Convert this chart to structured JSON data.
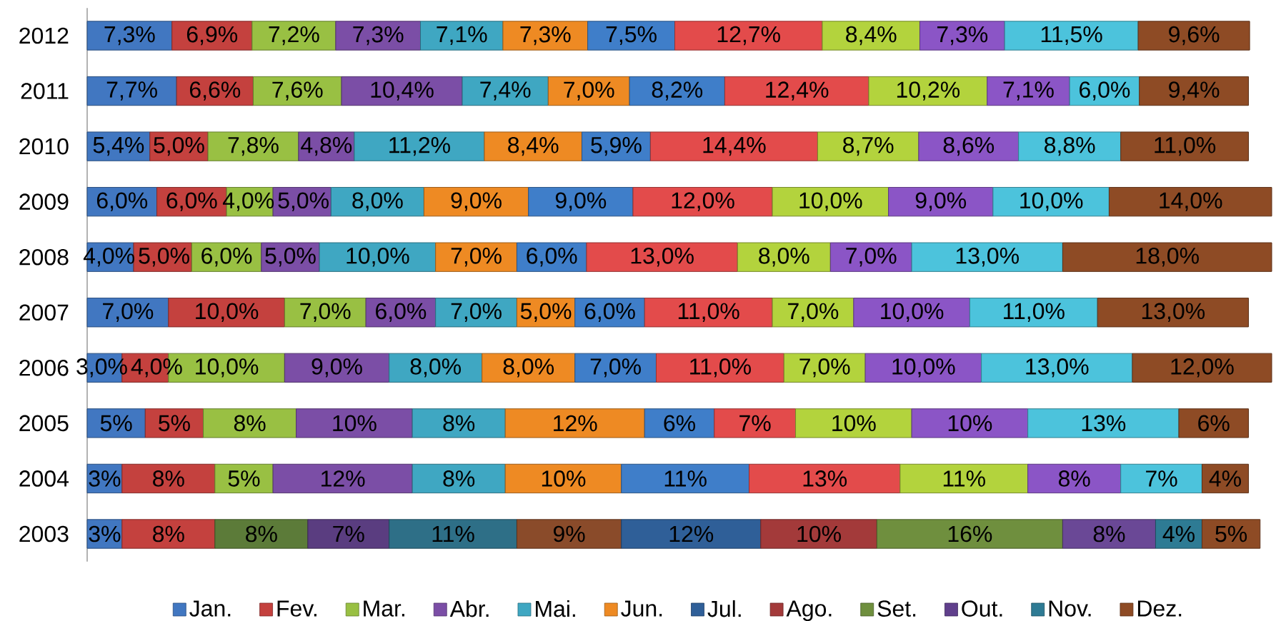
{
  "chart_data": {
    "type": "bar",
    "orientation": "horizontal",
    "stacked": true,
    "legend": "bottom",
    "tick_labels": "y",
    "categories": [
      "2012",
      "2011",
      "2010",
      "2009",
      "2008",
      "2007",
      "2006",
      "2005",
      "2004",
      "2003"
    ],
    "series": [
      {
        "name": "Jan.",
        "color": "#4177c1",
        "values": [
          7.3,
          7.7,
          5.4,
          6,
          4,
          7,
          3,
          5,
          3,
          3
        ],
        "value_labels": [
          "7,3%",
          "7,7%",
          "5,4%",
          "6,0%",
          "4,0%",
          "7,0%",
          "3,0%",
          "5%",
          "3%",
          "3%"
        ]
      },
      {
        "name": "Fev.",
        "color": "#c4413e",
        "values": [
          6.9,
          6.6,
          5.0,
          6,
          5,
          10,
          4,
          5,
          8,
          8
        ],
        "value_labels": [
          "6,9%",
          "6,6%",
          "5,0%",
          "6,0%",
          "5,0%",
          "10,0%",
          "4,0%",
          "5%",
          "8%",
          "8%"
        ]
      },
      {
        "name": "Mar.",
        "color": "#99c043",
        "colors": [
          "#99c043",
          "#99c043",
          "#99c043",
          "#99c043",
          "#99c043",
          "#99c043",
          "#99c043",
          "#99c043",
          "#99c043",
          "#5c7b39"
        ],
        "values": [
          7.2,
          7.6,
          7.8,
          4,
          6,
          7,
          10,
          8,
          5,
          8
        ],
        "value_labels": [
          "7,2%",
          "7,6%",
          "7,8%",
          "4,0%",
          "6,0%",
          "7,0%",
          "10,0%",
          "8%",
          "5%",
          "8%"
        ]
      },
      {
        "name": "Abr.",
        "color": "#7b4ea6",
        "colors": [
          "#7b4ea6",
          "#7b4ea6",
          "#7b4ea6",
          "#7b4ea6",
          "#7b4ea6",
          "#7b4ea6",
          "#7b4ea6",
          "#7b4ea6",
          "#7b4ea6",
          "#5a3d80"
        ],
        "values": [
          7.3,
          10.4,
          4.8,
          5,
          5,
          6,
          9,
          10,
          12,
          7
        ],
        "value_labels": [
          "7,3%",
          "10,4%",
          "4,8%",
          "5,0%",
          "5,0%",
          "6,0%",
          "9,0%",
          "10%",
          "12%",
          "7%"
        ]
      },
      {
        "name": "Mai.",
        "color": "#3fa7c2",
        "colors": [
          "#3fa7c2",
          "#3fa7c2",
          "#3fa7c2",
          "#3fa7c2",
          "#3fa7c2",
          "#3fa7c2",
          "#3fa7c2",
          "#3fa7c2",
          "#3fa7c2",
          "#2e6f87"
        ],
        "values": [
          7.1,
          7.4,
          11.2,
          8,
          10,
          7,
          8,
          8,
          8,
          11
        ],
        "value_labels": [
          "7,1%",
          "7,4%",
          "11,2%",
          "8,0%",
          "10,0%",
          "7,0%",
          "8,0%",
          "8%",
          "8%",
          "11%"
        ]
      },
      {
        "name": "Jun.",
        "color": "#ee8a23",
        "colors": [
          "#ee8a23",
          "#ee8a23",
          "#ee8a23",
          "#ee8a23",
          "#ee8a23",
          "#ee8a23",
          "#ee8a23",
          "#ee8a23",
          "#ee8a23",
          "#8a4b2a"
        ],
        "values": [
          7.3,
          7.0,
          8.4,
          9,
          7,
          5,
          8,
          12,
          10,
          9
        ],
        "value_labels": [
          "7,3%",
          "7,0%",
          "8,4%",
          "9,0%",
          "7,0%",
          "5,0%",
          "8,0%",
          "12%",
          "10%",
          "9%"
        ]
      },
      {
        "name": "Jul.",
        "color": "#2f5f98",
        "colors": [
          "#3f7ec9",
          "#3f7ec9",
          "#3f7ec9",
          "#3f7ec9",
          "#3f7ec9",
          "#3f7ec9",
          "#3f7ec9",
          "#3f7ec9",
          "#3f7ec9",
          "#2f5f98"
        ],
        "values": [
          7.5,
          8.2,
          5.9,
          9,
          6,
          6,
          7,
          6,
          11,
          12
        ],
        "value_labels": [
          "7,5%",
          "8,2%",
          "5,9%",
          "9,0%",
          "6,0%",
          "6,0%",
          "7,0%",
          "6%",
          "11%",
          "12%"
        ]
      },
      {
        "name": "Ago.",
        "color": "#a33a3a",
        "colors": [
          "#e34b4b",
          "#e34b4b",
          "#e34b4b",
          "#e34b4b",
          "#e34b4b",
          "#e34b4b",
          "#e34b4b",
          "#e34b4b",
          "#e34b4b",
          "#a33a3a"
        ],
        "values": [
          12.7,
          12.4,
          14.4,
          12,
          13,
          11,
          11,
          7,
          13,
          10
        ],
        "value_labels": [
          "12,7%",
          "12,4%",
          "14,4%",
          "12,0%",
          "13,0%",
          "11,0%",
          "11,0%",
          "7%",
          "13%",
          "10%"
        ]
      },
      {
        "name": "Set.",
        "color": "#6f8f3e",
        "colors": [
          "#b3d33d",
          "#b3d33d",
          "#b3d33d",
          "#b3d33d",
          "#b3d33d",
          "#b3d33d",
          "#b3d33d",
          "#b3d33d",
          "#b3d33d",
          "#6f8f3e"
        ],
        "values": [
          8.4,
          10.2,
          8.7,
          10,
          8,
          7,
          7,
          10,
          11,
          16
        ],
        "value_labels": [
          "8,4%",
          "10,2%",
          "8,7%",
          "10,0%",
          "8,0%",
          "7,0%",
          "7,0%",
          "10%",
          "11%",
          "16%"
        ]
      },
      {
        "name": "Out.",
        "color": "#603f8c",
        "colors": [
          "#8b55c6",
          "#8b55c6",
          "#8b55c6",
          "#8b55c6",
          "#8b55c6",
          "#8b55c6",
          "#8b55c6",
          "#8b55c6",
          "#8b55c6",
          "#6a4896"
        ],
        "values": [
          7.3,
          7.1,
          8.6,
          9,
          7,
          10,
          10,
          10,
          8,
          8
        ],
        "value_labels": [
          "7,3%",
          "7,1%",
          "8,6%",
          "9,0%",
          "7,0%",
          "10,0%",
          "10,0%",
          "10%",
          "8%",
          "8%"
        ]
      },
      {
        "name": "Nov.",
        "color": "#2e7b94",
        "colors": [
          "#4cc3dc",
          "#4cc3dc",
          "#4cc3dc",
          "#4cc3dc",
          "#4cc3dc",
          "#4cc3dc",
          "#4cc3dc",
          "#4cc3dc",
          "#4cc3dc",
          "#2e7b94"
        ],
        "values": [
          11.5,
          6.0,
          8.8,
          10,
          13,
          11,
          13,
          13,
          7,
          4
        ],
        "value_labels": [
          "11,5%",
          "6,0%",
          "8,8%",
          "10,0%",
          "13,0%",
          "11,0%",
          "13,0%",
          "13%",
          "7%",
          "4%"
        ]
      },
      {
        "name": "Dez.",
        "color": "#8e4b25",
        "values": [
          9.6,
          9.4,
          11.0,
          14,
          18,
          13,
          12,
          6,
          4,
          5
        ],
        "value_labels": [
          "9,6%",
          "9,4%",
          "11,0%",
          "14,0%",
          "18,0%",
          "13,0%",
          "12,0%",
          "6%",
          "4%",
          "5%"
        ]
      }
    ]
  }
}
